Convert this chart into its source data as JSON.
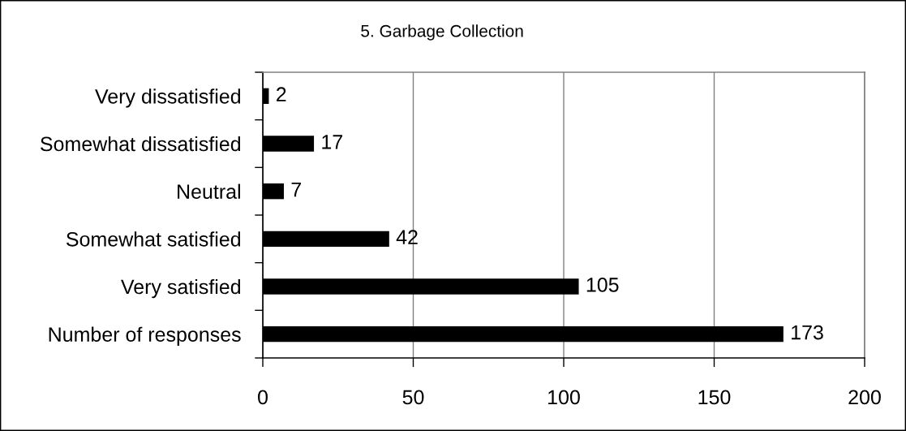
{
  "chart_data": {
    "type": "bar",
    "orientation": "horizontal",
    "title": "5. Garbage Collection",
    "categories": [
      "Very dissatisfied",
      "Somewhat dissatisfied",
      "Neutral",
      "Somewhat satisfied",
      "Very satisfied",
      "Number of responses"
    ],
    "values": [
      2,
      17,
      7,
      42,
      105,
      173
    ],
    "color": "#000000",
    "xlim": [
      0,
      200
    ],
    "xticks": [
      0,
      50,
      100,
      150,
      200
    ],
    "grid": "x",
    "data_labels": true
  }
}
